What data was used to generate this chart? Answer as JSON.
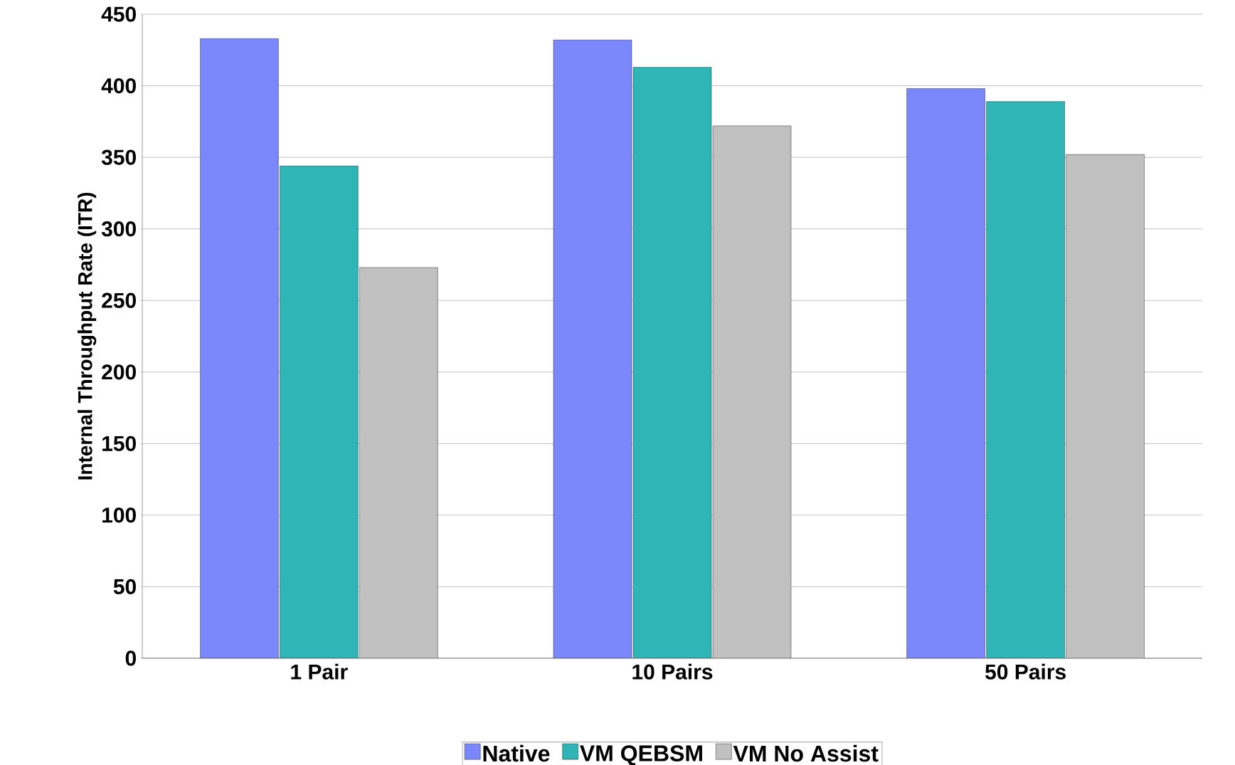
{
  "chart_data": {
    "type": "bar",
    "ylabel": "Internal Throughput Rate (ITR)",
    "categories": [
      "1 Pair",
      "10 Pairs",
      "50 Pairs"
    ],
    "series": [
      {
        "name": "Native",
        "color": "#7b88fb",
        "values": [
          433,
          432,
          398
        ]
      },
      {
        "name": "VM QEBSM",
        "color": "#2fb5b5",
        "values": [
          344,
          413,
          389
        ]
      },
      {
        "name": "VM No Assist",
        "color": "#c0c0c0",
        "values": [
          273,
          372,
          352
        ]
      }
    ],
    "ylim": [
      0,
      450
    ],
    "yticks": [
      0,
      50,
      100,
      150,
      200,
      250,
      300,
      350,
      400,
      450
    ],
    "grid": "y",
    "legend": "bottom"
  }
}
